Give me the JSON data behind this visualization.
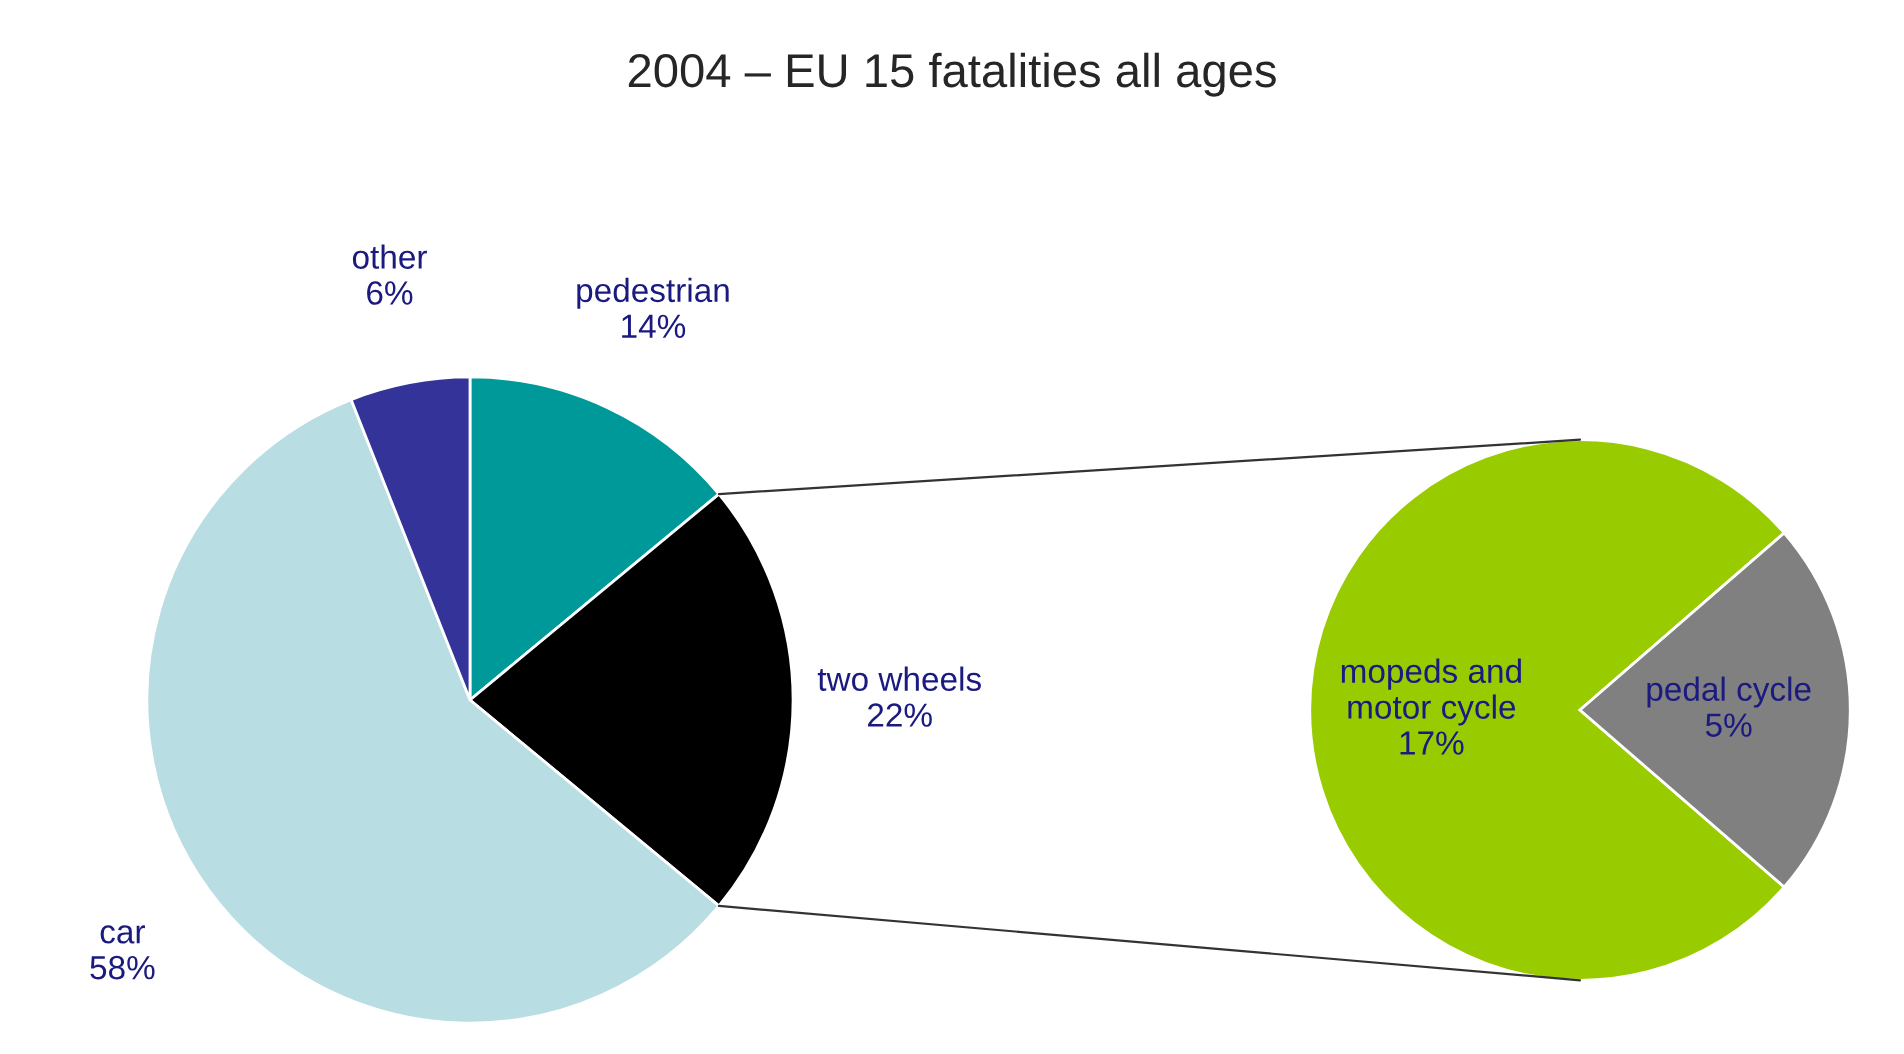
{
  "chart_data": [
    {
      "type": "pie",
      "title": "2004 – EU 15 fatalities all ages",
      "categories": [
        "pedestrian",
        "two wheels",
        "car",
        "other"
      ],
      "values": [
        14,
        22,
        58,
        6
      ],
      "value_labels": [
        "14%",
        "22%",
        "58%",
        "6%"
      ],
      "colors": [
        "#009999",
        "#000000",
        "#b8dde3",
        "#333399"
      ]
    },
    {
      "type": "pie",
      "categories": [
        "mopeds and\nmotor cycle",
        "pedal cycle"
      ],
      "values": [
        17,
        5
      ],
      "value_labels": [
        "17%",
        "5%"
      ],
      "colors": [
        "#99cc00",
        "#808080"
      ]
    }
  ]
}
